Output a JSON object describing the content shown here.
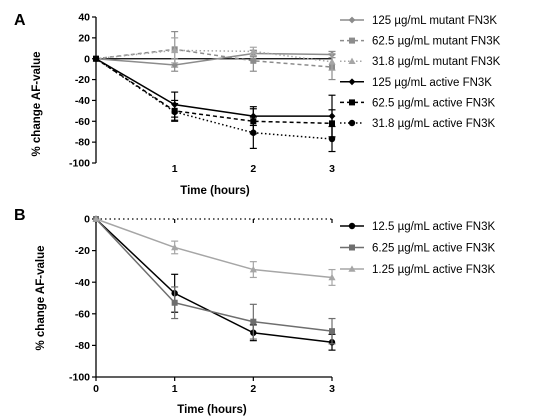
{
  "colors": {
    "axis": "#000000",
    "mutant": "#8c8c8c",
    "active": "#000000",
    "grey": "#6e6e6e",
    "lightgrey": "#a6a6a6"
  },
  "chart_data": [
    {
      "type": "line",
      "panel_label": "A",
      "xlabel": "Time (hours)",
      "ylabel": "% change AF-value",
      "x_ticks": [
        "1",
        "2",
        "3"
      ],
      "y_ticks": [
        "40",
        "20",
        "0",
        "-20",
        "-40",
        "-60",
        "-80",
        "-100"
      ],
      "xlim": [
        0,
        3
      ],
      "ylim": [
        -100,
        40
      ],
      "reference_line": 0,
      "legend_position": "right",
      "series": [
        {
          "name": "125 µg/mL mutant FN3K",
          "x": [
            0,
            1,
            2,
            3
          ],
          "y": [
            0,
            -6,
            5,
            4
          ],
          "err": [
            0,
            6,
            3,
            3
          ],
          "color": "#8c8c8c",
          "dash": "solid",
          "marker": "diamond"
        },
        {
          "name": "62.5 µg/mL mutant FN3K",
          "x": [
            0,
            1,
            2,
            3
          ],
          "y": [
            0,
            9,
            -2,
            -8
          ],
          "err": [
            0,
            17,
            10,
            12
          ],
          "color": "#8c8c8c",
          "dash": "dashed",
          "marker": "square"
        },
        {
          "name": "31.8 µg/mL mutant FN3K",
          "x": [
            0,
            1,
            2,
            3
          ],
          "y": [
            0,
            8,
            7,
            -3
          ],
          "err": [
            0,
            12,
            4,
            8
          ],
          "color": "#a6a6a6",
          "dash": "dotted",
          "marker": "triangle"
        },
        {
          "name": "125 µg/mL active FN3K",
          "x": [
            0,
            1,
            2,
            3
          ],
          "y": [
            0,
            -44,
            -55,
            -55
          ],
          "err": [
            0,
            12,
            9,
            20
          ],
          "color": "#000000",
          "dash": "solid",
          "marker": "diamond"
        },
        {
          "name": "62.5 µg/mL active FN3K",
          "x": [
            0,
            1,
            2,
            3
          ],
          "y": [
            0,
            -50,
            -60,
            -62
          ],
          "err": [
            0,
            10,
            12,
            13
          ],
          "color": "#000000",
          "dash": "dashed",
          "marker": "square"
        },
        {
          "name": "31.8 µg/mL active FN3K",
          "x": [
            0,
            1,
            2,
            3
          ],
          "y": [
            0,
            -51,
            -71,
            -77
          ],
          "err": [
            0,
            8,
            15,
            12
          ],
          "color": "#000000",
          "dash": "dotted",
          "marker": "circle"
        }
      ]
    },
    {
      "type": "line",
      "panel_label": "B",
      "xlabel": "Time (hours)",
      "ylabel": "% change AF-value",
      "x_ticks": [
        "0",
        "1",
        "2",
        "3"
      ],
      "y_ticks": [
        "0",
        "-20",
        "-40",
        "-60",
        "-80",
        "-100"
      ],
      "xlim": [
        0,
        3
      ],
      "ylim": [
        -100,
        0
      ],
      "reference_line": 0,
      "legend_position": "right",
      "series": [
        {
          "name": "12.5 µg/mL active FN3K",
          "x": [
            0,
            1,
            2,
            3
          ],
          "y": [
            0,
            -47,
            -72,
            -78
          ],
          "err": [
            0,
            12,
            5,
            5
          ],
          "color": "#000000",
          "marker": "circle"
        },
        {
          "name": "6.25 µg/mL active FN3K",
          "x": [
            0,
            1,
            2,
            3
          ],
          "y": [
            0,
            -53,
            -65,
            -71
          ],
          "err": [
            0,
            10,
            11,
            8
          ],
          "color": "#6e6e6e",
          "marker": "square"
        },
        {
          "name": "1.25 µg/mL active FN3K",
          "x": [
            0,
            1,
            2,
            3
          ],
          "y": [
            0,
            -18,
            -32,
            -37
          ],
          "err": [
            0,
            4,
            5,
            5
          ],
          "color": "#a6a6a6",
          "marker": "triangle"
        }
      ]
    }
  ]
}
